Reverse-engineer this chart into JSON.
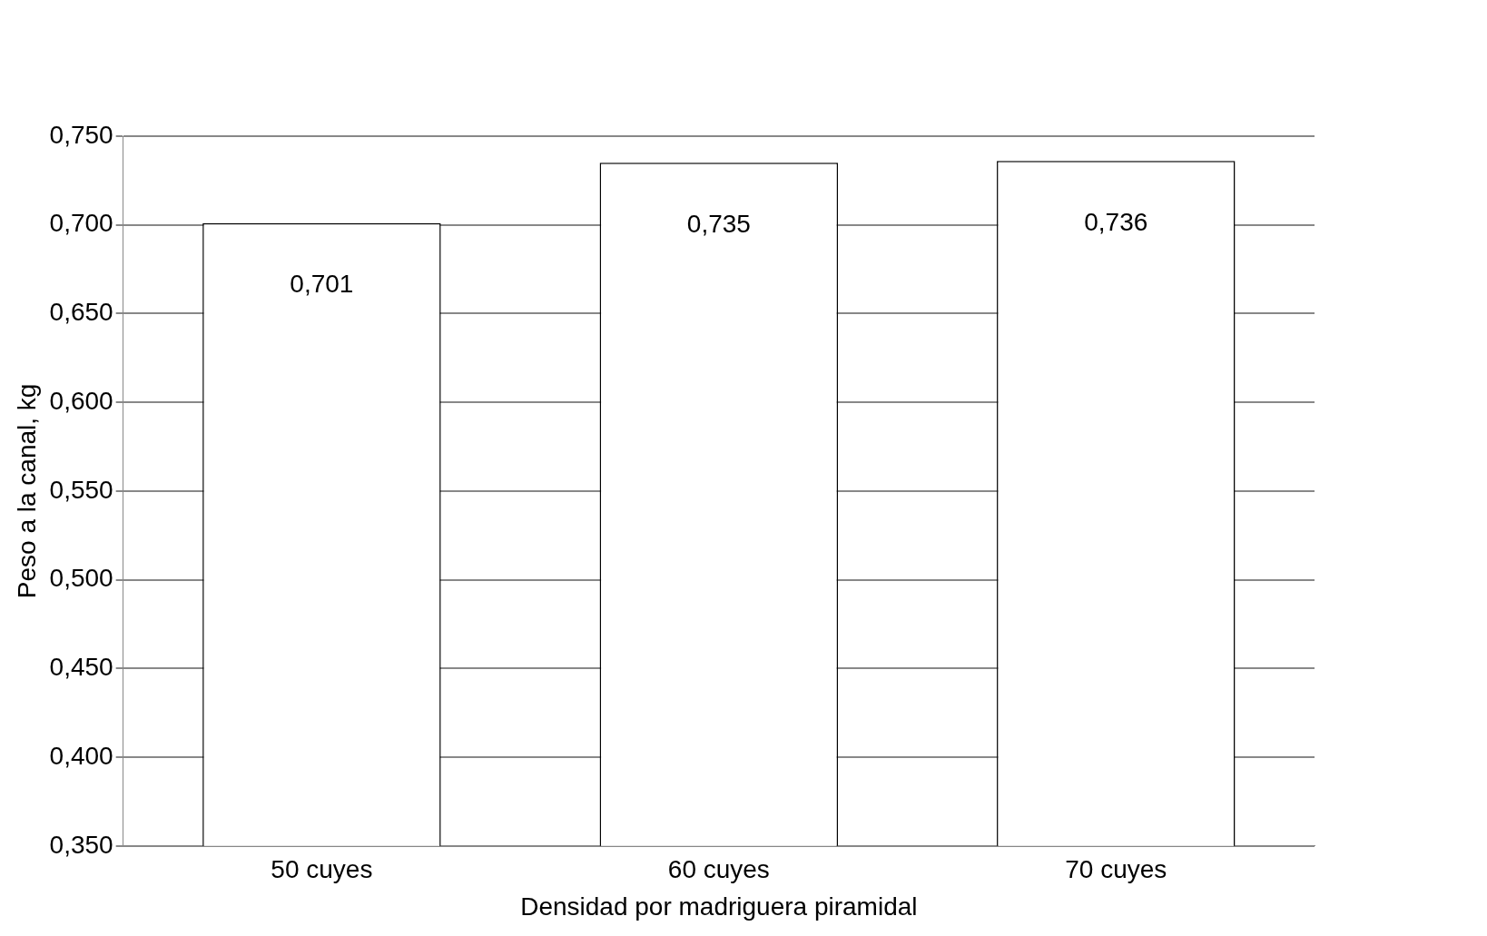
{
  "chart_data": {
    "type": "bar",
    "xlabel": "Densidad por madriguera piramidal",
    "ylabel": "Peso a la canal, kg",
    "categories": [
      "50 cuyes",
      "60 cuyes",
      "70 cuyes"
    ],
    "values": [
      0.701,
      0.735,
      0.736
    ],
    "color": "#ffffff",
    "value_labels": [
      "0,701",
      "0,735",
      "0,736"
    ],
    "ylim": [
      0.35,
      0.75
    ],
    "yticks": [
      {
        "value": 0.35,
        "label": "0,350"
      },
      {
        "value": 0.4,
        "label": "0,400"
      },
      {
        "value": 0.45,
        "label": "0,450"
      },
      {
        "value": 0.5,
        "label": "0,500"
      },
      {
        "value": 0.55,
        "label": "0,550"
      },
      {
        "value": 0.6,
        "label": "0,600"
      },
      {
        "value": 0.65,
        "label": "0,650"
      },
      {
        "value": 0.7,
        "label": "0,700"
      },
      {
        "value": 0.75,
        "label": "0,750"
      }
    ],
    "grid": "y",
    "legend": false
  }
}
